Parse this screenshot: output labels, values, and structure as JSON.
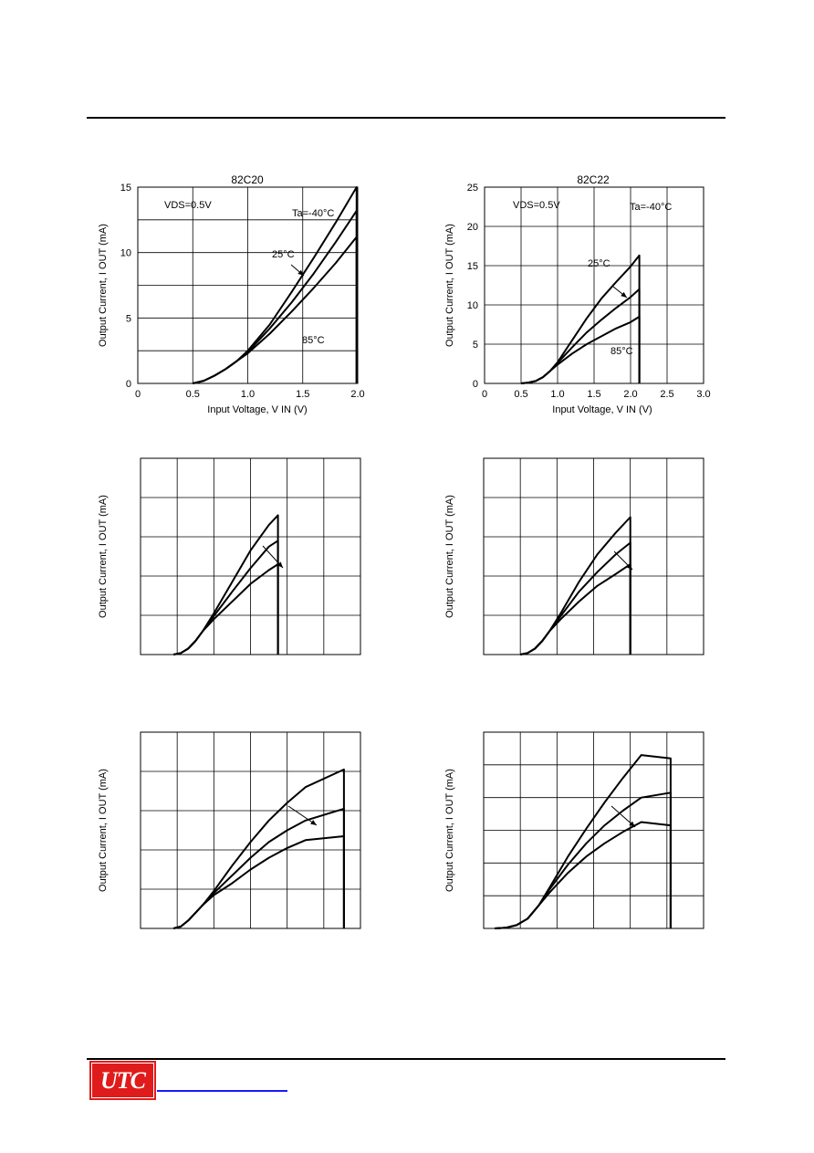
{
  "page": {
    "logo_text": "UTC",
    "colors": {
      "logo_bg": "#e01b1b",
      "link": "#1a1aff",
      "ink": "#000000"
    }
  },
  "chart_data": [
    {
      "type": "line",
      "title": "82C20",
      "xlabel": "Input Voltage, V IN (V)",
      "ylabel": "Output Current, I OUT (mA)",
      "xlim": [
        0,
        2.0
      ],
      "ylim": [
        0,
        15
      ],
      "xticks": [
        "0",
        "0.5",
        "1.0",
        "1.5",
        "2.0"
      ],
      "yticks": [
        "0",
        "5",
        "10",
        "15"
      ],
      "x_grid_step": 0.5,
      "y_grid_step": 2.5,
      "annotations": [
        "VDS=0.5V",
        "Ta=-40°C",
        "25°C",
        "85°C"
      ],
      "series": [
        {
          "name": "Ta=-40°C",
          "points": [
            [
              0.5,
              0
            ],
            [
              0.6,
              0.2
            ],
            [
              0.7,
              0.6
            ],
            [
              0.8,
              1.1
            ],
            [
              0.9,
              1.7
            ],
            [
              1.0,
              2.5
            ],
            [
              1.2,
              4.5
            ],
            [
              1.4,
              7.0
            ],
            [
              1.6,
              9.6
            ],
            [
              1.8,
              12.3
            ],
            [
              1.99,
              15.0
            ],
            [
              1.99,
              0
            ]
          ]
        },
        {
          "name": "25°C",
          "points": [
            [
              0.5,
              0
            ],
            [
              0.6,
              0.2
            ],
            [
              0.7,
              0.6
            ],
            [
              0.8,
              1.1
            ],
            [
              0.9,
              1.7
            ],
            [
              1.0,
              2.4
            ],
            [
              1.2,
              4.2
            ],
            [
              1.4,
              6.2
            ],
            [
              1.6,
              8.4
            ],
            [
              1.8,
              10.8
            ],
            [
              1.99,
              13.2
            ],
            [
              1.99,
              0
            ]
          ]
        },
        {
          "name": "85°C",
          "points": [
            [
              0.5,
              0
            ],
            [
              0.6,
              0.2
            ],
            [
              0.7,
              0.6
            ],
            [
              0.8,
              1.1
            ],
            [
              0.9,
              1.7
            ],
            [
              1.0,
              2.3
            ],
            [
              1.2,
              3.8
            ],
            [
              1.4,
              5.5
            ],
            [
              1.6,
              7.3
            ],
            [
              1.8,
              9.2
            ],
            [
              1.99,
              11.2
            ],
            [
              1.99,
              0
            ]
          ]
        }
      ]
    },
    {
      "type": "line",
      "title": "82C22",
      "xlabel": "Input Voltage, V IN (V)",
      "ylabel": "Output Current, I OUT (mA)",
      "xlim": [
        0,
        3.0
      ],
      "ylim": [
        0,
        25
      ],
      "xticks": [
        "0",
        "0.5",
        "1.0",
        "1.5",
        "2.0",
        "2.5",
        "3.0"
      ],
      "yticks": [
        "0",
        "5",
        "10",
        "15",
        "20",
        "25"
      ],
      "x_grid_step": 0.5,
      "y_grid_step": 5,
      "annotations": [
        "VDS=0.5V",
        "Ta=-40°C",
        "25°C",
        "85°C"
      ],
      "series": [
        {
          "name": "Ta=-40°C",
          "points": [
            [
              0.5,
              0
            ],
            [
              0.6,
              0.1
            ],
            [
              0.7,
              0.3
            ],
            [
              0.8,
              0.8
            ],
            [
              0.9,
              1.6
            ],
            [
              1.0,
              2.7
            ],
            [
              1.2,
              5.5
            ],
            [
              1.4,
              8.3
            ],
            [
              1.6,
              10.8
            ],
            [
              1.8,
              12.9
            ],
            [
              2.0,
              14.9
            ],
            [
              2.12,
              16.3
            ],
            [
              2.12,
              0
            ]
          ]
        },
        {
          "name": "25°C",
          "points": [
            [
              0.5,
              0
            ],
            [
              0.6,
              0.1
            ],
            [
              0.7,
              0.3
            ],
            [
              0.8,
              0.8
            ],
            [
              0.9,
              1.6
            ],
            [
              1.0,
              2.6
            ],
            [
              1.2,
              4.6
            ],
            [
              1.4,
              6.5
            ],
            [
              1.6,
              8.1
            ],
            [
              1.8,
              9.6
            ],
            [
              2.0,
              11.0
            ],
            [
              2.12,
              12.0
            ],
            [
              2.12,
              0
            ]
          ]
        },
        {
          "name": "85°C",
          "points": [
            [
              0.5,
              0
            ],
            [
              0.6,
              0.1
            ],
            [
              0.7,
              0.3
            ],
            [
              0.8,
              0.8
            ],
            [
              0.9,
              1.6
            ],
            [
              1.0,
              2.4
            ],
            [
              1.2,
              3.8
            ],
            [
              1.4,
              5.0
            ],
            [
              1.6,
              6.0
            ],
            [
              1.8,
              7.0
            ],
            [
              2.0,
              7.8
            ],
            [
              2.12,
              8.5
            ],
            [
              2.12,
              0
            ]
          ]
        }
      ]
    },
    {
      "type": "line",
      "title": "",
      "xlabel": "",
      "ylabel": "Output Current, I OUT (mA)",
      "xlim": [
        0,
        6
      ],
      "ylim": [
        0,
        5
      ],
      "xticks": [],
      "yticks": [],
      "x_grid_step": 1,
      "y_grid_step": 1,
      "annotations": [],
      "series": [
        {
          "name": "",
          "points": [
            [
              0.9,
              0
            ],
            [
              1.1,
              0.04
            ],
            [
              1.3,
              0.15
            ],
            [
              1.5,
              0.35
            ],
            [
              1.7,
              0.6
            ],
            [
              2.0,
              1.05
            ],
            [
              2.5,
              1.85
            ],
            [
              3.0,
              2.65
            ],
            [
              3.5,
              3.3
            ],
            [
              3.75,
              3.55
            ],
            [
              3.75,
              0
            ]
          ]
        },
        {
          "name": "",
          "points": [
            [
              0.9,
              0
            ],
            [
              1.1,
              0.04
            ],
            [
              1.3,
              0.15
            ],
            [
              1.5,
              0.35
            ],
            [
              1.7,
              0.6
            ],
            [
              2.0,
              0.98
            ],
            [
              2.5,
              1.6
            ],
            [
              3.0,
              2.2
            ],
            [
              3.5,
              2.75
            ],
            [
              3.75,
              2.9
            ],
            [
              3.75,
              0
            ]
          ]
        },
        {
          "name": "",
          "points": [
            [
              0.9,
              0
            ],
            [
              1.1,
              0.04
            ],
            [
              1.3,
              0.15
            ],
            [
              1.5,
              0.35
            ],
            [
              1.7,
              0.6
            ],
            [
              2.0,
              0.9
            ],
            [
              2.5,
              1.35
            ],
            [
              3.0,
              1.8
            ],
            [
              3.5,
              2.15
            ],
            [
              3.75,
              2.3
            ],
            [
              3.75,
              0
            ]
          ]
        }
      ]
    },
    {
      "type": "line",
      "title": "",
      "xlabel": "",
      "ylabel": "Output Current, I OUT (mA)",
      "xlim": [
        0,
        6
      ],
      "ylim": [
        0,
        5
      ],
      "xticks": [],
      "yticks": [],
      "x_grid_step": 1,
      "y_grid_step": 1,
      "annotations": [],
      "series": [
        {
          "name": "",
          "points": [
            [
              1.0,
              0
            ],
            [
              1.2,
              0.04
            ],
            [
              1.4,
              0.15
            ],
            [
              1.6,
              0.35
            ],
            [
              1.8,
              0.6
            ],
            [
              2.1,
              1.05
            ],
            [
              2.6,
              1.85
            ],
            [
              3.1,
              2.55
            ],
            [
              3.6,
              3.1
            ],
            [
              4.0,
              3.5
            ],
            [
              4.0,
              0
            ]
          ]
        },
        {
          "name": "",
          "points": [
            [
              1.0,
              0
            ],
            [
              1.2,
              0.04
            ],
            [
              1.4,
              0.15
            ],
            [
              1.6,
              0.35
            ],
            [
              1.8,
              0.6
            ],
            [
              2.1,
              0.98
            ],
            [
              2.6,
              1.6
            ],
            [
              3.1,
              2.1
            ],
            [
              3.6,
              2.55
            ],
            [
              4.0,
              2.85
            ],
            [
              4.0,
              0
            ]
          ]
        },
        {
          "name": "",
          "points": [
            [
              1.0,
              0
            ],
            [
              1.2,
              0.04
            ],
            [
              1.4,
              0.15
            ],
            [
              1.6,
              0.35
            ],
            [
              1.8,
              0.6
            ],
            [
              2.1,
              0.9
            ],
            [
              2.6,
              1.35
            ],
            [
              3.1,
              1.75
            ],
            [
              3.6,
              2.05
            ],
            [
              4.0,
              2.3
            ],
            [
              4.0,
              0
            ]
          ]
        }
      ]
    },
    {
      "type": "line",
      "title": "",
      "xlabel": "",
      "ylabel": "Output Current, I OUT (mA)",
      "xlim": [
        0,
        6
      ],
      "ylim": [
        0,
        5
      ],
      "xticks": [],
      "yticks": [],
      "x_grid_step": 1,
      "y_grid_step": 1,
      "annotations": [],
      "series": [
        {
          "name": "",
          "points": [
            [
              0.9,
              0
            ],
            [
              1.1,
              0.05
            ],
            [
              1.3,
              0.2
            ],
            [
              1.5,
              0.4
            ],
            [
              1.7,
              0.6
            ],
            [
              2.0,
              0.95
            ],
            [
              2.5,
              1.6
            ],
            [
              3.0,
              2.2
            ],
            [
              3.5,
              2.75
            ],
            [
              4.0,
              3.2
            ],
            [
              4.5,
              3.6
            ],
            [
              5.55,
              4.05
            ],
            [
              5.55,
              0
            ]
          ]
        },
        {
          "name": "",
          "points": [
            [
              0.9,
              0
            ],
            [
              1.1,
              0.05
            ],
            [
              1.3,
              0.2
            ],
            [
              1.5,
              0.4
            ],
            [
              1.7,
              0.6
            ],
            [
              2.0,
              0.9
            ],
            [
              2.5,
              1.35
            ],
            [
              3.0,
              1.8
            ],
            [
              3.5,
              2.2
            ],
            [
              4.0,
              2.5
            ],
            [
              4.5,
              2.75
            ],
            [
              5.55,
              3.05
            ],
            [
              5.55,
              0
            ]
          ]
        },
        {
          "name": "",
          "points": [
            [
              0.9,
              0
            ],
            [
              1.1,
              0.05
            ],
            [
              1.3,
              0.2
            ],
            [
              1.5,
              0.4
            ],
            [
              1.7,
              0.6
            ],
            [
              2.0,
              0.85
            ],
            [
              2.5,
              1.15
            ],
            [
              3.0,
              1.5
            ],
            [
              3.5,
              1.8
            ],
            [
              4.0,
              2.05
            ],
            [
              4.5,
              2.25
            ],
            [
              5.55,
              2.35
            ],
            [
              5.55,
              0
            ]
          ]
        }
      ]
    },
    {
      "type": "line",
      "title": "",
      "xlabel": "",
      "ylabel": "Output Current, I OUT (mA)",
      "xlim": [
        0,
        6
      ],
      "ylim": [
        0,
        6
      ],
      "xticks": [],
      "yticks": [],
      "x_grid_step": 1,
      "y_grid_step": 1,
      "annotations": [],
      "series": [
        {
          "name": "",
          "points": [
            [
              0.3,
              0
            ],
            [
              0.6,
              0.02
            ],
            [
              0.9,
              0.1
            ],
            [
              1.2,
              0.3
            ],
            [
              1.5,
              0.7
            ],
            [
              1.8,
              1.25
            ],
            [
              2.3,
              2.2
            ],
            [
              2.8,
              3.05
            ],
            [
              3.3,
              3.85
            ],
            [
              3.8,
              4.6
            ],
            [
              4.3,
              5.3
            ],
            [
              5.1,
              5.2
            ],
            [
              5.1,
              0
            ]
          ]
        },
        {
          "name": "",
          "points": [
            [
              0.3,
              0
            ],
            [
              0.6,
              0.02
            ],
            [
              0.9,
              0.1
            ],
            [
              1.2,
              0.3
            ],
            [
              1.5,
              0.7
            ],
            [
              1.8,
              1.2
            ],
            [
              2.3,
              1.95
            ],
            [
              2.8,
              2.6
            ],
            [
              3.3,
              3.15
            ],
            [
              3.8,
              3.6
            ],
            [
              4.3,
              4.0
            ],
            [
              5.1,
              4.15
            ],
            [
              5.1,
              0
            ]
          ]
        },
        {
          "name": "",
          "points": [
            [
              0.3,
              0
            ],
            [
              0.6,
              0.02
            ],
            [
              0.9,
              0.1
            ],
            [
              1.2,
              0.3
            ],
            [
              1.5,
              0.7
            ],
            [
              1.8,
              1.1
            ],
            [
              2.3,
              1.7
            ],
            [
              2.8,
              2.2
            ],
            [
              3.3,
              2.6
            ],
            [
              3.8,
              2.95
            ],
            [
              4.3,
              3.25
            ],
            [
              5.1,
              3.15
            ],
            [
              5.1,
              0
            ]
          ]
        }
      ]
    }
  ]
}
